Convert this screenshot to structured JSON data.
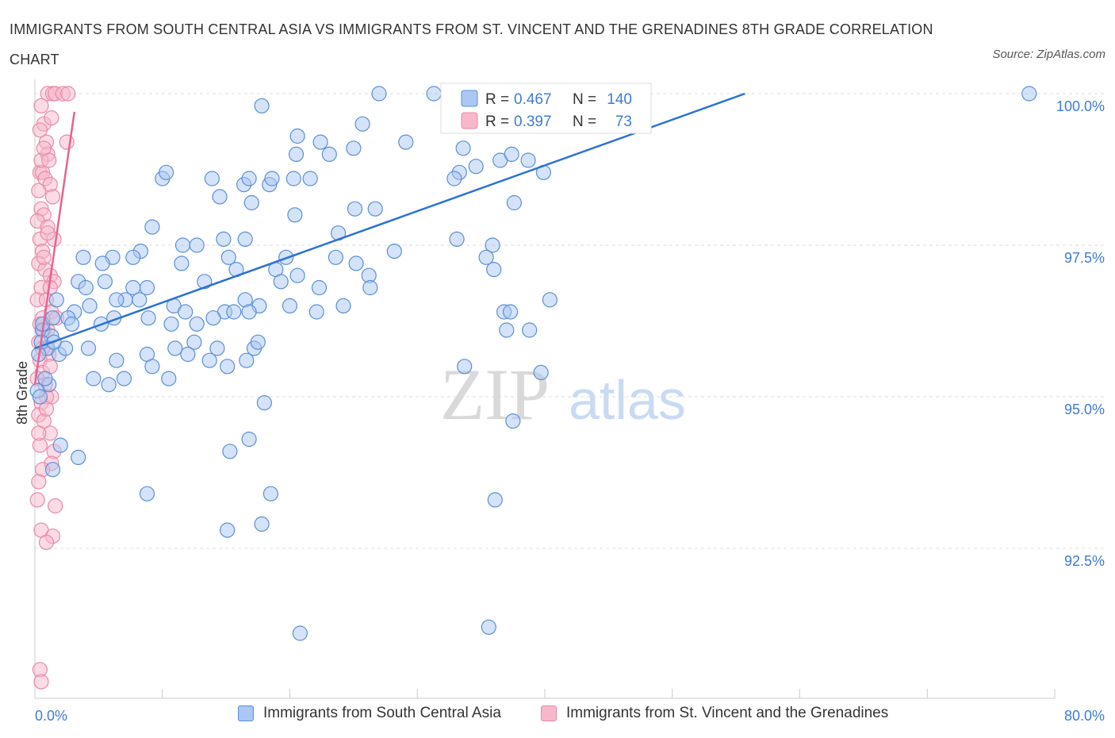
{
  "title": "IMMIGRANTS FROM SOUTH CENTRAL ASIA VS IMMIGRANTS FROM ST. VINCENT AND THE GRENADINES 8TH GRADE CORRELATION CHART",
  "source": "Source: ZipAtlas.com",
  "watermark": {
    "zip": "ZIP",
    "atlas": "atlas"
  },
  "colors": {
    "blue_fill": "#a9c8f3",
    "blue_stroke": "#5b8fd6",
    "blue_line": "#2c72d2",
    "pink_fill": "#f7b8cc",
    "pink_stroke": "#e98aa8",
    "pink_line": "#e8638f",
    "tick_label": "#3d7cd4",
    "grid": "#dcdcdc"
  },
  "legend": {
    "rows": [
      {
        "r_label": "R = ",
        "r_value": "0.467",
        "n_label": "N = ",
        "n_value": "140"
      },
      {
        "r_label": "R = ",
        "r_value": "0.397",
        "n_label": "N = ",
        "n_value": "73"
      }
    ]
  },
  "chart_data": {
    "type": "scatter",
    "title": "IMMIGRANTS FROM SOUTH CENTRAL ASIA VS IMMIGRANTS FROM ST. VINCENT AND THE GRENADINES 8TH GRADE CORRELATION CHART",
    "xlabel": "",
    "ylabel": "8th Grade",
    "xlim": [
      0,
      80
    ],
    "ylim": [
      90.6,
      100.2
    ],
    "x_tick_labels": [
      "0.0%",
      "80.0%"
    ],
    "y_ticks": [
      92.5,
      95.0,
      97.5,
      100.0
    ],
    "y_tick_labels": [
      "92.5%",
      "95.0%",
      "97.5%",
      "100.0%"
    ],
    "grid": "horizontal dashed",
    "legend_position": "top-center",
    "series": [
      {
        "name": "Immigrants from South Central Asia",
        "r": 0.467,
        "n": 140,
        "trend": {
          "x": [
            0.0,
            55.7
          ],
          "y": [
            95.8,
            100.0
          ]
        },
        "points": [
          [
            27.0,
            100.0
          ],
          [
            36.1,
            100.0
          ],
          [
            38.2,
            100.0
          ],
          [
            39.5,
            100.0
          ],
          [
            40.5,
            100.0
          ],
          [
            31.3,
            100.0
          ],
          [
            78.0,
            100.0
          ],
          [
            17.8,
            99.8
          ],
          [
            25.7,
            99.5
          ],
          [
            20.6,
            99.3
          ],
          [
            20.5,
            99.0
          ],
          [
            22.4,
            99.2
          ],
          [
            23.1,
            99.0
          ],
          [
            25.0,
            99.1
          ],
          [
            29.1,
            99.2
          ],
          [
            33.6,
            99.1
          ],
          [
            34.6,
            98.8
          ],
          [
            36.5,
            98.9
          ],
          [
            37.4,
            99.0
          ],
          [
            38.7,
            98.9
          ],
          [
            33.3,
            98.7
          ],
          [
            32.9,
            98.6
          ],
          [
            39.9,
            98.7
          ],
          [
            10.0,
            98.6
          ],
          [
            10.3,
            98.7
          ],
          [
            13.9,
            98.6
          ],
          [
            16.4,
            98.5
          ],
          [
            16.8,
            98.6
          ],
          [
            18.4,
            98.5
          ],
          [
            18.6,
            98.6
          ],
          [
            20.3,
            98.6
          ],
          [
            21.6,
            98.6
          ],
          [
            14.5,
            98.3
          ],
          [
            17.0,
            98.2
          ],
          [
            20.4,
            98.0
          ],
          [
            25.1,
            98.1
          ],
          [
            26.7,
            98.1
          ],
          [
            37.6,
            98.2
          ],
          [
            9.2,
            97.8
          ],
          [
            12.7,
            97.5
          ],
          [
            11.6,
            97.5
          ],
          [
            14.8,
            97.6
          ],
          [
            16.5,
            97.6
          ],
          [
            23.8,
            97.7
          ],
          [
            19.7,
            97.3
          ],
          [
            28.2,
            97.4
          ],
          [
            35.9,
            97.5
          ],
          [
            33.1,
            97.6
          ],
          [
            8.3,
            97.4
          ],
          [
            7.7,
            97.3
          ],
          [
            11.5,
            97.2
          ],
          [
            6.1,
            97.3
          ],
          [
            5.3,
            97.2
          ],
          [
            3.8,
            97.3
          ],
          [
            15.2,
            97.3
          ],
          [
            15.8,
            97.1
          ],
          [
            18.9,
            97.1
          ],
          [
            23.6,
            97.3
          ],
          [
            25.2,
            97.2
          ],
          [
            26.2,
            97.0
          ],
          [
            19.3,
            96.9
          ],
          [
            20.6,
            97.0
          ],
          [
            22.3,
            96.8
          ],
          [
            26.3,
            96.8
          ],
          [
            13.3,
            96.9
          ],
          [
            8.8,
            96.8
          ],
          [
            7.7,
            96.8
          ],
          [
            5.5,
            96.9
          ],
          [
            3.4,
            96.9
          ],
          [
            4.0,
            96.8
          ],
          [
            7.1,
            96.6
          ],
          [
            8.2,
            96.6
          ],
          [
            10.9,
            96.5
          ],
          [
            11.8,
            96.4
          ],
          [
            14.9,
            96.4
          ],
          [
            16.5,
            96.6
          ],
          [
            17.6,
            96.5
          ],
          [
            22.1,
            96.4
          ],
          [
            24.2,
            96.5
          ],
          [
            20.0,
            96.5
          ],
          [
            15.6,
            96.4
          ],
          [
            14.0,
            96.3
          ],
          [
            12.7,
            96.2
          ],
          [
            10.7,
            96.2
          ],
          [
            8.9,
            96.3
          ],
          [
            6.2,
            96.3
          ],
          [
            5.2,
            96.2
          ],
          [
            3.1,
            96.4
          ],
          [
            2.6,
            96.3
          ],
          [
            1.7,
            96.6
          ],
          [
            0.6,
            96.1
          ],
          [
            1.3,
            96.0
          ],
          [
            1.0,
            95.8
          ],
          [
            0.5,
            95.9
          ],
          [
            0.3,
            95.7
          ],
          [
            1.9,
            95.7
          ],
          [
            2.4,
            95.8
          ],
          [
            4.2,
            95.8
          ],
          [
            6.4,
            95.6
          ],
          [
            8.8,
            95.7
          ],
          [
            11.0,
            95.8
          ],
          [
            12.5,
            95.9
          ],
          [
            12.0,
            95.7
          ],
          [
            17.2,
            95.8
          ],
          [
            17.5,
            95.9
          ],
          [
            16.6,
            95.6
          ],
          [
            15.1,
            95.5
          ],
          [
            14.3,
            95.8
          ],
          [
            13.7,
            95.6
          ],
          [
            4.6,
            95.3
          ],
          [
            5.8,
            95.2
          ],
          [
            7.0,
            95.3
          ],
          [
            9.2,
            95.5
          ],
          [
            10.5,
            95.3
          ],
          [
            1.1,
            95.2
          ],
          [
            0.2,
            95.1
          ],
          [
            0.8,
            95.3
          ],
          [
            37.0,
            96.1
          ],
          [
            36.0,
            97.1
          ],
          [
            35.4,
            97.3
          ],
          [
            36.8,
            96.4
          ],
          [
            40.4,
            96.6
          ],
          [
            38.8,
            96.1
          ],
          [
            37.3,
            96.4
          ],
          [
            33.7,
            95.5
          ],
          [
            39.7,
            95.4
          ],
          [
            0.4,
            95.0
          ],
          [
            0.6,
            96.2
          ],
          [
            1.4,
            96.3
          ],
          [
            2.9,
            96.2
          ],
          [
            4.3,
            96.5
          ],
          [
            6.4,
            96.6
          ],
          [
            1.5,
            95.9
          ],
          [
            2.0,
            94.2
          ],
          [
            3.4,
            94.0
          ],
          [
            1.4,
            93.8
          ],
          [
            8.8,
            93.4
          ],
          [
            18.5,
            93.4
          ],
          [
            37.5,
            94.6
          ],
          [
            36.1,
            93.3
          ],
          [
            15.1,
            92.8
          ],
          [
            17.8,
            92.9
          ],
          [
            35.6,
            91.2
          ],
          [
            20.8,
            91.1
          ],
          [
            16.8,
            94.3
          ],
          [
            18.0,
            94.9
          ],
          [
            16.8,
            96.4
          ],
          [
            15.3,
            94.1
          ]
        ]
      },
      {
        "name": "Immigrants from St. Vincent and the Grenadines",
        "r": 0.397,
        "n": 73,
        "trend": {
          "x": [
            0.0,
            3.1
          ],
          "y": [
            95.2,
            99.7
          ]
        },
        "points": [
          [
            1.0,
            100.0
          ],
          [
            1.4,
            100.0
          ],
          [
            1.6,
            100.0
          ],
          [
            2.2,
            100.0
          ],
          [
            2.6,
            100.0
          ],
          [
            0.5,
            99.8
          ],
          [
            0.7,
            99.5
          ],
          [
            0.9,
            99.2
          ],
          [
            1.0,
            99.0
          ],
          [
            2.5,
            99.2
          ],
          [
            0.4,
            98.7
          ],
          [
            0.6,
            98.7
          ],
          [
            0.3,
            98.4
          ],
          [
            0.8,
            98.6
          ],
          [
            1.2,
            98.5
          ],
          [
            1.4,
            98.3
          ],
          [
            0.5,
            98.1
          ],
          [
            0.7,
            98.0
          ],
          [
            0.2,
            97.9
          ],
          [
            1.0,
            97.8
          ],
          [
            1.5,
            97.6
          ],
          [
            0.4,
            97.6
          ],
          [
            0.6,
            97.4
          ],
          [
            0.3,
            97.2
          ],
          [
            0.8,
            97.1
          ],
          [
            1.2,
            97.0
          ],
          [
            1.5,
            96.9
          ],
          [
            0.5,
            96.8
          ],
          [
            0.2,
            96.6
          ],
          [
            0.9,
            96.6
          ],
          [
            1.3,
            96.4
          ],
          [
            1.7,
            96.3
          ],
          [
            0.4,
            96.2
          ],
          [
            0.7,
            96.1
          ],
          [
            0.3,
            95.9
          ],
          [
            0.9,
            95.8
          ],
          [
            1.1,
            95.7
          ],
          [
            0.4,
            95.6
          ],
          [
            0.6,
            95.4
          ],
          [
            0.2,
            95.3
          ],
          [
            0.8,
            95.2
          ],
          [
            1.3,
            95.0
          ],
          [
            0.5,
            94.9
          ],
          [
            0.3,
            94.7
          ],
          [
            0.7,
            94.6
          ],
          [
            1.2,
            94.4
          ],
          [
            0.4,
            94.2
          ],
          [
            1.5,
            94.1
          ],
          [
            1.3,
            93.9
          ],
          [
            0.6,
            93.8
          ],
          [
            0.3,
            93.6
          ],
          [
            0.2,
            93.3
          ],
          [
            1.6,
            93.2
          ],
          [
            0.5,
            92.8
          ],
          [
            1.4,
            92.7
          ],
          [
            0.9,
            92.6
          ],
          [
            0.4,
            90.5
          ],
          [
            0.5,
            90.3
          ],
          [
            1.0,
            96.1
          ],
          [
            0.6,
            96.3
          ],
          [
            1.2,
            95.5
          ],
          [
            0.9,
            95.0
          ],
          [
            0.3,
            94.4
          ],
          [
            0.7,
            97.3
          ],
          [
            1.0,
            97.7
          ],
          [
            0.5,
            98.9
          ],
          [
            0.7,
            99.1
          ],
          [
            1.1,
            98.9
          ],
          [
            0.4,
            99.4
          ],
          [
            1.3,
            99.6
          ],
          [
            1.2,
            96.8
          ],
          [
            0.6,
            95.8
          ],
          [
            0.9,
            94.8
          ]
        ]
      }
    ]
  },
  "axes": {
    "y_label": "8th Grade",
    "x_min_label": "0.0%",
    "x_max_label": "80.0%"
  }
}
